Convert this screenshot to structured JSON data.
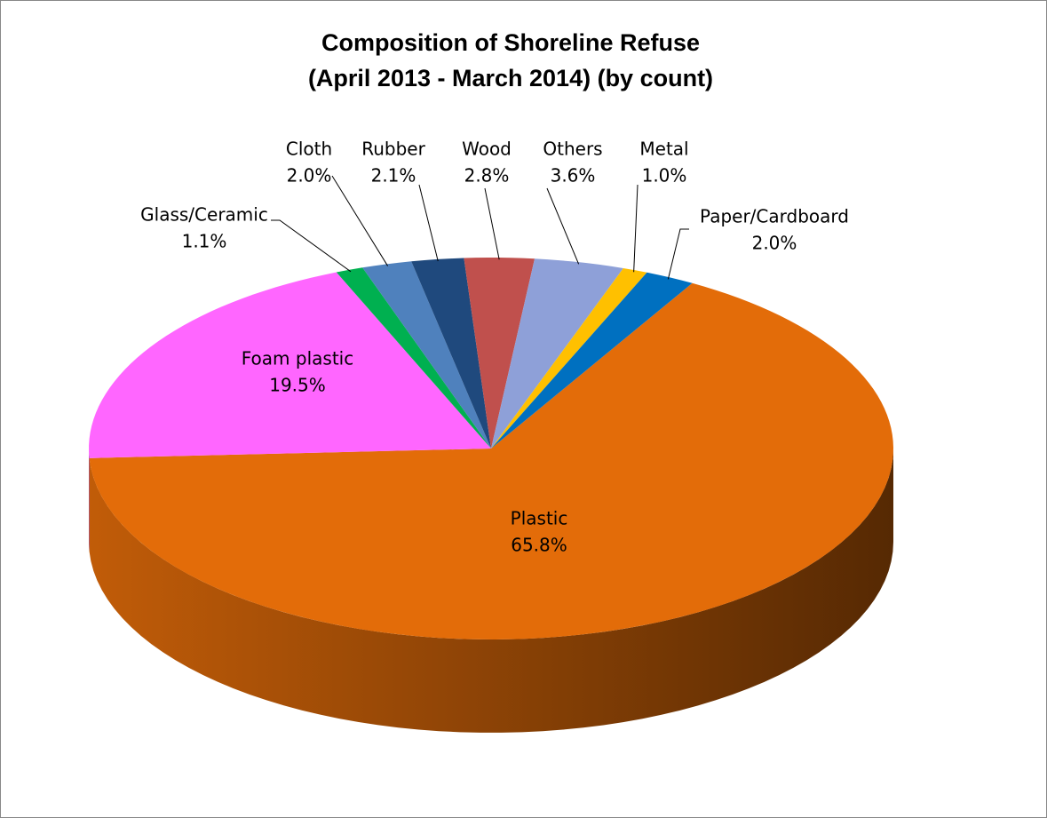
{
  "chart_data": {
    "type": "pie3d",
    "title": "Composition of Shoreline Refuse",
    "subtitle": "(April 2013 - March 2014) (by count)",
    "categories": [
      "Plastic",
      "Foam plastic",
      "Glass/Ceramic",
      "Cloth",
      "Rubber",
      "Wood",
      "Others",
      "Metal",
      "Paper/Cardboard"
    ],
    "values": [
      65.8,
      19.5,
      1.1,
      2.0,
      2.1,
      2.8,
      3.6,
      1.0,
      2.0
    ],
    "value_labels": [
      "65.8%",
      "19.5%",
      "1.1%",
      "2.0%",
      "2.1%",
      "2.8%",
      "3.6%",
      "1.0%",
      "2.0%"
    ],
    "colors": [
      "#e36c09",
      "#ff66ff",
      "#00b050",
      "#4f81bd",
      "#1f497d",
      "#c0504d",
      "#8ea0d8",
      "#ffc000",
      "#0070c0"
    ]
  }
}
